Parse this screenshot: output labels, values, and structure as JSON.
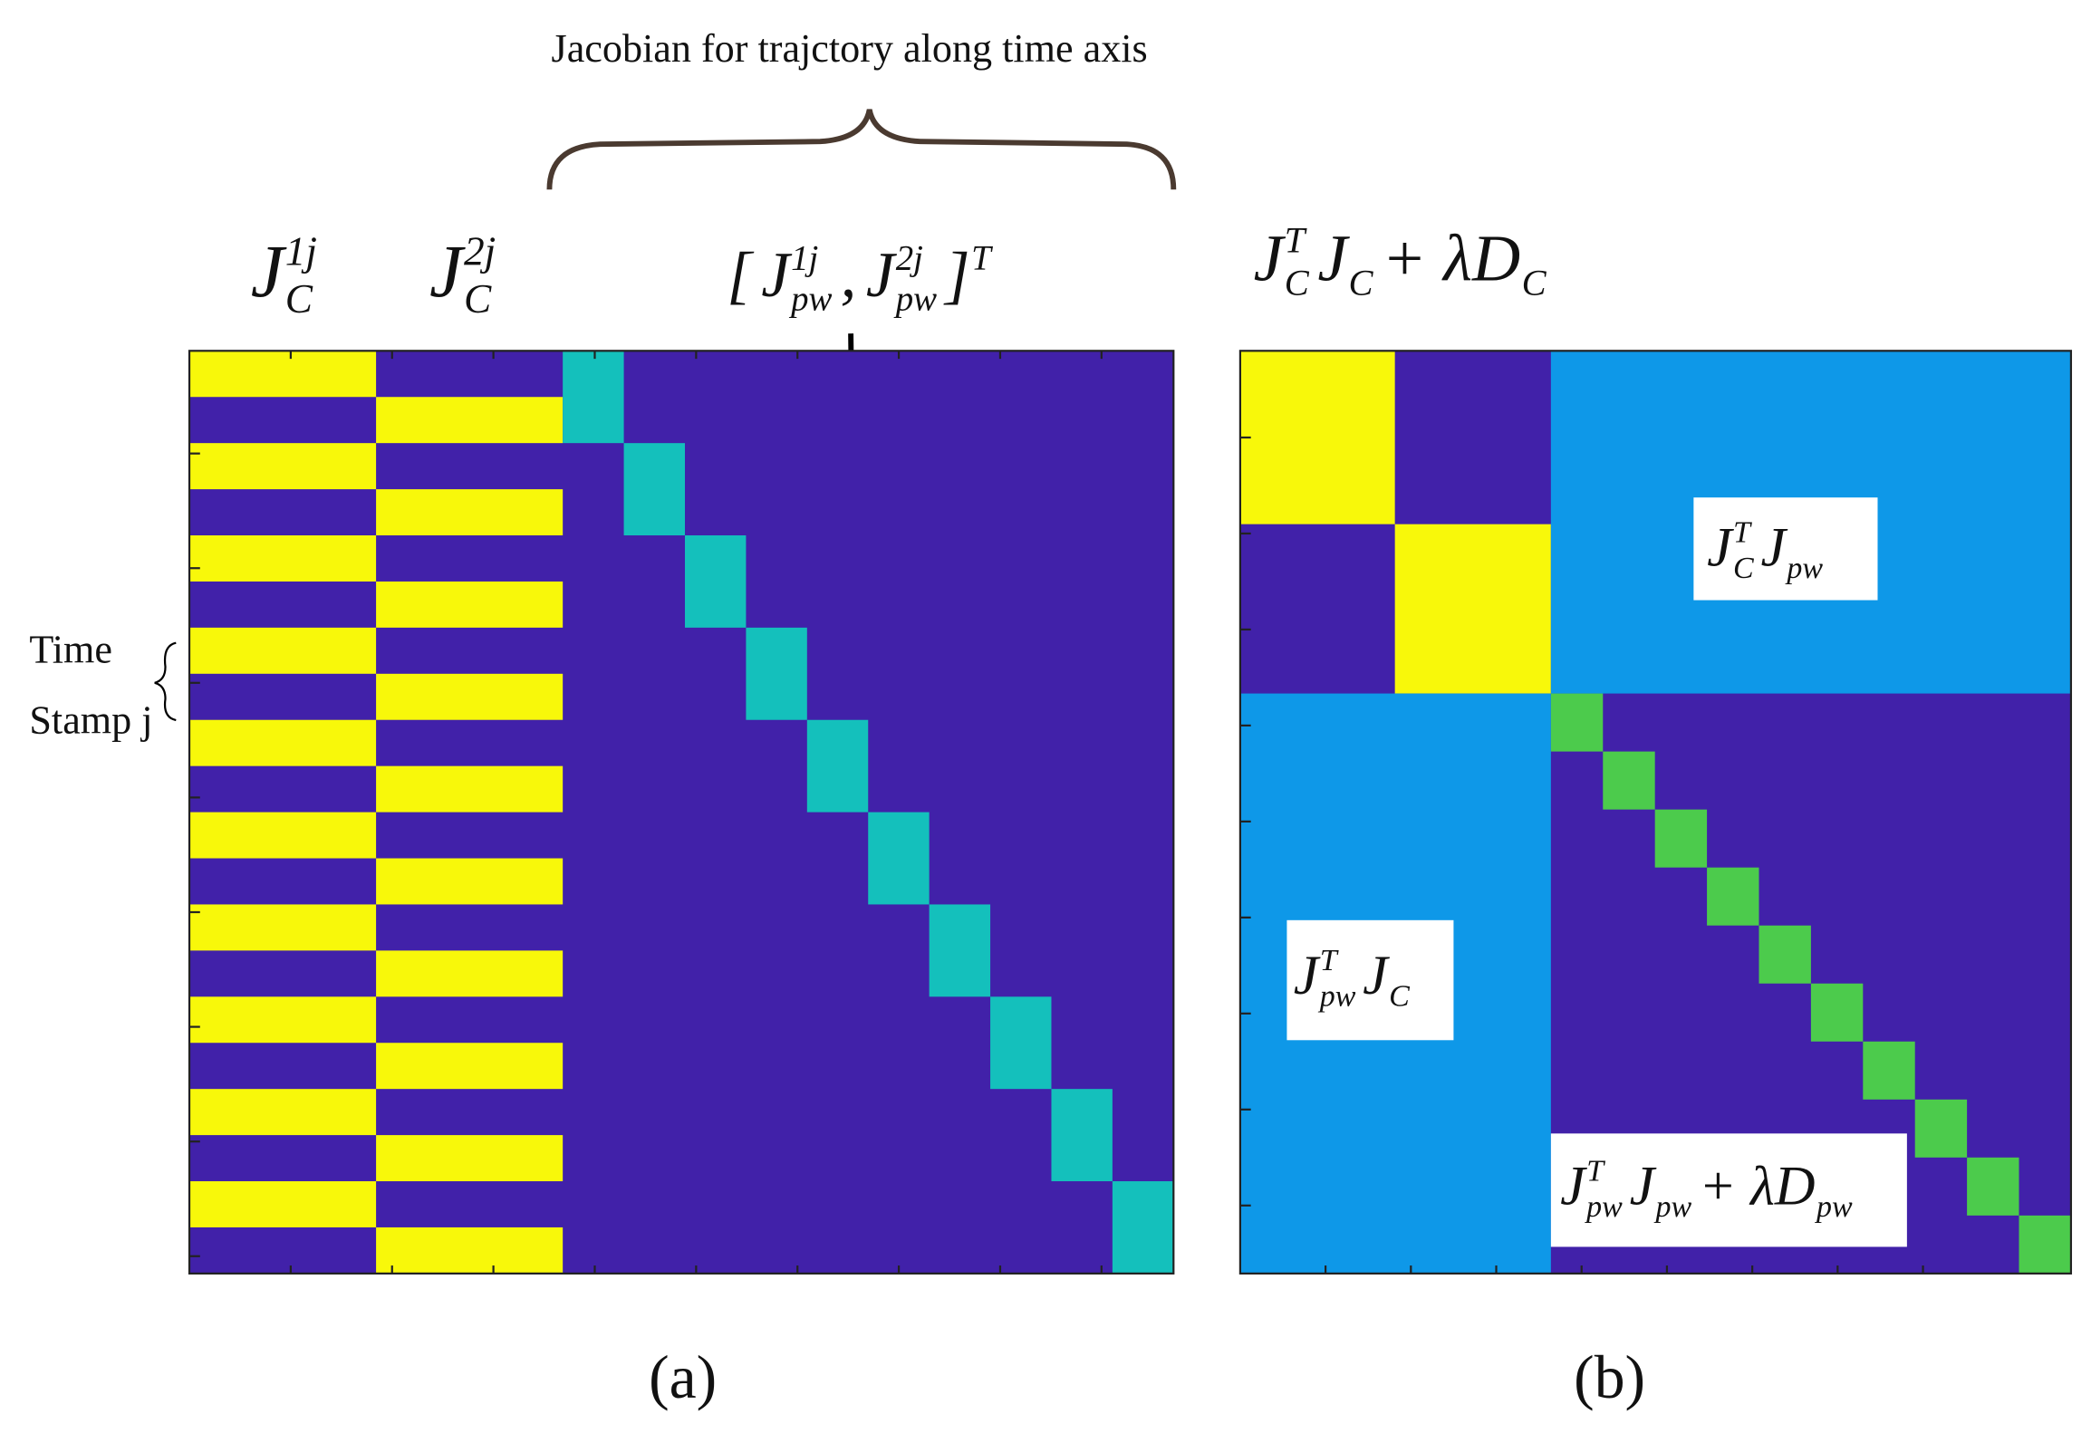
{
  "title": "Jacobian for trajctory along time axis",
  "panel_a": {
    "labels": [
      [
        {
          "t": "J",
          "sup": "1j",
          "sub": "C"
        }
      ],
      [
        {
          "t": "J",
          "sup": "2j",
          "sub": "C"
        }
      ],
      [
        {
          "t": "["
        },
        {
          "t": "J",
          "sup": "1j",
          "sub": "pw"
        },
        {
          "t": ","
        },
        {
          "t": "J",
          "sup": "2j",
          "sub": "pw"
        },
        {
          "t": "]",
          "sup": "T"
        }
      ]
    ],
    "row_label": [
      "Time",
      "Stamp j"
    ],
    "caption": "(a)"
  },
  "panel_b": {
    "label": [
      {
        "t": "J",
        "sup": "T",
        "sub": "C"
      },
      {
        "t": "J",
        "sub": "C"
      },
      {
        "t": "+ λD",
        "sub": "C"
      }
    ],
    "blocks": [
      [
        {
          "t": "J",
          "sup": "T",
          "sub": "C"
        },
        {
          "t": "J",
          "sub": "pw"
        }
      ],
      [
        {
          "t": "J",
          "sup": "T",
          "sub": "pw"
        },
        {
          "t": "J",
          "sub": "C"
        }
      ],
      [
        {
          "t": "J",
          "sup": "T",
          "sub": "pw"
        },
        {
          "t": "J",
          "sub": "pw"
        },
        {
          "t": "+ λD",
          "sub": "pw"
        }
      ]
    ],
    "caption": "(b)"
  }
}
